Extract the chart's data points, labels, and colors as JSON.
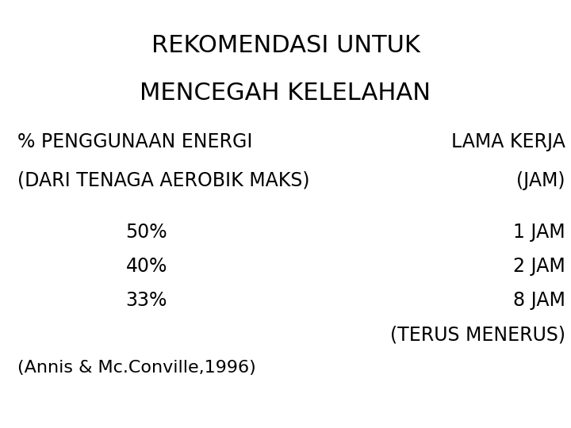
{
  "title_line1": "REKOMENDASI UNTUK",
  "title_line2": "MENCEGAH KELELAHAN",
  "header_left1": "% PENGGUNAAN ENERGI",
  "header_right1": "LAMA KERJA",
  "header_left2": "(DARI TENAGA AEROBIK MAKS)",
  "header_right2": "(JAM)",
  "row1_left": "50%",
  "row1_right": "1 JAM",
  "row2_left": "40%",
  "row2_right": "2 JAM",
  "row3_left": "33%",
  "row3_right": "8 JAM",
  "row4_right": "(TERUS MENERUS)",
  "footer": "(Annis & Mc.Conville,1996)",
  "bg_color": "#ffffff",
  "text_color": "#000000",
  "title_fontsize": 22,
  "header_fontsize": 17,
  "body_fontsize": 17,
  "footer_fontsize": 16
}
